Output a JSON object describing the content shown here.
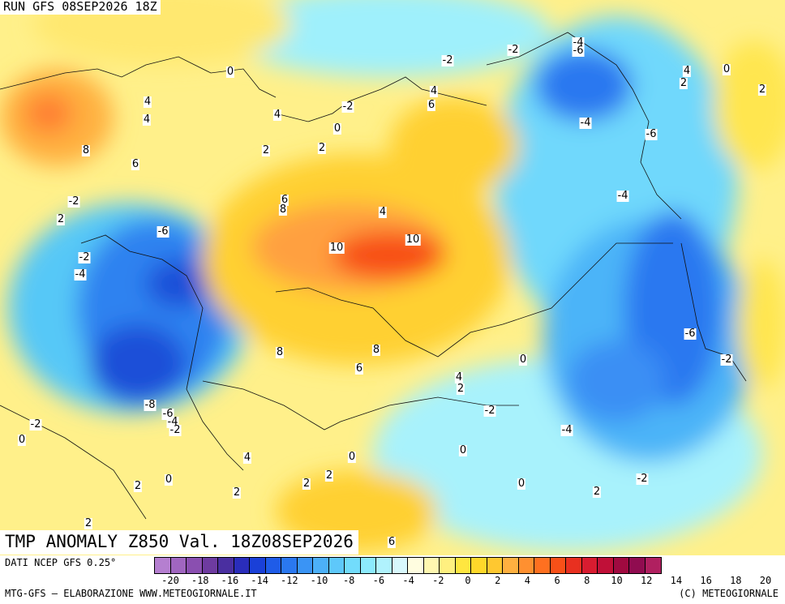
{
  "header": {
    "run": "RUN GFS 08SEP2026 18Z"
  },
  "title": "TMP ANOMALY Z850 Val. 18Z08SEP2026",
  "footer": {
    "data_source": "DATI NCEP GFS 0.25°",
    "credit": "MTG-GFS – ELABORAZIONE WWW.METEOGIORNALE.IT",
    "copyright": "(C) METEOGIORNALE"
  },
  "colorbar": {
    "colors": [
      "#b57fd0",
      "#a066c0",
      "#8a4fb0",
      "#6e3ba0",
      "#4a2fa0",
      "#2a2dbb",
      "#1a40d8",
      "#1f5ce8",
      "#2a78f0",
      "#3a94f5",
      "#4cb0f8",
      "#5ec8fa",
      "#72dcfc",
      "#8ceafd",
      "#b0f2fd",
      "#d8f8fc",
      "#fffde0",
      "#fff7b0",
      "#fff080",
      "#ffe640",
      "#ffd82a",
      "#ffc830",
      "#ffb040",
      "#ff9030",
      "#ff7020",
      "#f85018",
      "#e83020",
      "#d81c30",
      "#c01038",
      "#a00a40",
      "#900c50",
      "#b02060"
    ],
    "ticks": [
      "-20",
      "-18",
      "-16",
      "-14",
      "-12",
      "-10",
      "-8",
      "-6",
      "-4",
      "-2",
      "0",
      "2",
      "4",
      "6",
      "8",
      "10",
      "12",
      "14",
      "16",
      "18",
      "20"
    ]
  },
  "contour_labels": [
    {
      "text": "0"
    },
    {
      "text": "-2"
    },
    {
      "text": "-2"
    },
    {
      "text": "-4"
    },
    {
      "text": "-6"
    },
    {
      "text": "4"
    },
    {
      "text": "0"
    },
    {
      "text": "2"
    },
    {
      "text": "2"
    },
    {
      "text": "4"
    },
    {
      "text": "-2"
    },
    {
      "text": "4"
    },
    {
      "text": "6"
    },
    {
      "text": "8"
    },
    {
      "text": "6"
    },
    {
      "text": "0"
    },
    {
      "text": "2"
    },
    {
      "text": "4"
    },
    {
      "text": "2"
    },
    {
      "text": "-6"
    },
    {
      "text": "-2"
    },
    {
      "text": "-4"
    },
    {
      "text": "6"
    },
    {
      "text": "8"
    },
    {
      "text": "4"
    },
    {
      "text": "10"
    },
    {
      "text": "10"
    },
    {
      "text": "-4"
    },
    {
      "text": "-6"
    },
    {
      "text": "-4"
    },
    {
      "text": "8"
    },
    {
      "text": "8"
    },
    {
      "text": "6"
    },
    {
      "text": "4"
    },
    {
      "text": "2"
    },
    {
      "text": "0"
    },
    {
      "text": "-6"
    },
    {
      "text": "-2"
    },
    {
      "text": "-2"
    },
    {
      "text": "-8"
    },
    {
      "text": "-6"
    },
    {
      "text": "-4"
    },
    {
      "text": "-2"
    },
    {
      "text": "-2"
    },
    {
      "text": "0"
    },
    {
      "text": "4"
    },
    {
      "text": "0"
    },
    {
      "text": "-2"
    },
    {
      "text": "0"
    },
    {
      "text": "-4"
    },
    {
      "text": "2"
    },
    {
      "text": "0"
    },
    {
      "text": "2"
    },
    {
      "text": "2"
    },
    {
      "text": "2"
    },
    {
      "text": "-2"
    },
    {
      "text": "0"
    },
    {
      "text": "2"
    },
    {
      "text": "2"
    },
    {
      "text": "6"
    },
    {
      "text": "4"
    },
    {
      "text": "2"
    }
  ]
}
